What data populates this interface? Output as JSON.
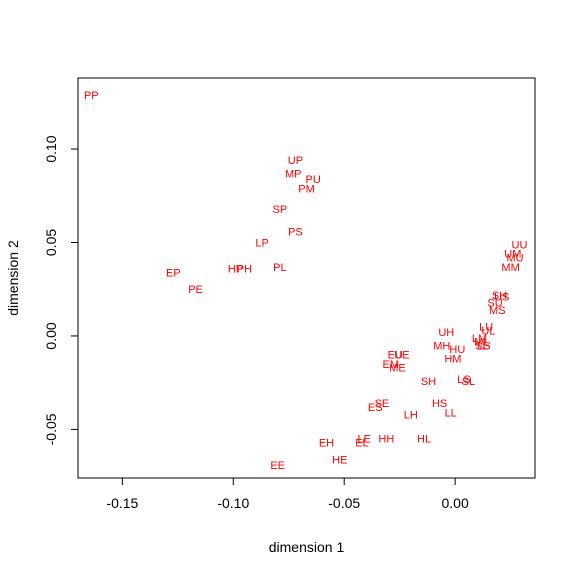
{
  "chart_data": {
    "type": "scatter",
    "title": "",
    "xlabel": "dimension 1",
    "ylabel": "dimension 2",
    "xlim": [
      -0.17,
      0.036
    ],
    "ylim": [
      -0.076,
      0.138
    ],
    "xticks": [
      -0.15,
      -0.1,
      -0.05,
      0.0
    ],
    "xtick_labels": [
      "-0.15",
      "-0.10",
      "-0.05",
      "0.00"
    ],
    "yticks": [
      -0.05,
      0.0,
      0.05,
      0.1
    ],
    "ytick_labels": [
      "-0.05",
      "0.00",
      "0.05",
      "0.10"
    ],
    "grid": false,
    "point_color": "#ff0000",
    "points": [
      {
        "label": "PP",
        "x": -0.164,
        "y": 0.129
      },
      {
        "label": "UP",
        "x": -0.072,
        "y": 0.094
      },
      {
        "label": "MP",
        "x": -0.073,
        "y": 0.087
      },
      {
        "label": "PU",
        "x": -0.064,
        "y": 0.084
      },
      {
        "label": "PM",
        "x": -0.067,
        "y": 0.079
      },
      {
        "label": "SP",
        "x": -0.079,
        "y": 0.068
      },
      {
        "label": "PS",
        "x": -0.072,
        "y": 0.056
      },
      {
        "label": "LP",
        "x": -0.087,
        "y": 0.05
      },
      {
        "label": "EP",
        "x": -0.127,
        "y": 0.034
      },
      {
        "label": "HP",
        "x": -0.099,
        "y": 0.036
      },
      {
        "label": "PH",
        "x": -0.095,
        "y": 0.036
      },
      {
        "label": "PL",
        "x": -0.079,
        "y": 0.037
      },
      {
        "label": "PE",
        "x": -0.117,
        "y": 0.025
      },
      {
        "label": "UU",
        "x": 0.029,
        "y": 0.049
      },
      {
        "label": "UM",
        "x": 0.026,
        "y": 0.044
      },
      {
        "label": "MU",
        "x": 0.027,
        "y": 0.042
      },
      {
        "label": "MM",
        "x": 0.025,
        "y": 0.037
      },
      {
        "label": "SH",
        "x": 0.02,
        "y": 0.022
      },
      {
        "label": "US",
        "x": 0.021,
        "y": 0.021
      },
      {
        "label": "SU",
        "x": 0.018,
        "y": 0.018
      },
      {
        "label": "MS",
        "x": 0.019,
        "y": 0.014
      },
      {
        "label": "LU",
        "x": 0.014,
        "y": 0.005
      },
      {
        "label": "UL",
        "x": 0.015,
        "y": 0.003
      },
      {
        "label": "LM",
        "x": 0.011,
        "y": -0.001
      },
      {
        "label": "ML",
        "x": 0.012,
        "y": -0.003
      },
      {
        "label": "LS",
        "x": 0.013,
        "y": -0.005
      },
      {
        "label": "SL",
        "x": 0.012,
        "y": -0.005
      },
      {
        "label": "UH",
        "x": -0.004,
        "y": 0.002
      },
      {
        "label": "MH",
        "x": -0.006,
        "y": -0.005
      },
      {
        "label": "HU",
        "x": 0.001,
        "y": -0.007
      },
      {
        "label": "HM",
        "x": -0.001,
        "y": -0.012
      },
      {
        "label": "EU",
        "x": -0.027,
        "y": -0.01
      },
      {
        "label": "UE",
        "x": -0.024,
        "y": -0.01
      },
      {
        "label": "EM",
        "x": -0.029,
        "y": -0.015
      },
      {
        "label": "ME",
        "x": -0.026,
        "y": -0.017
      },
      {
        "label": "SH",
        "x": -0.012,
        "y": -0.024
      },
      {
        "label": "LS",
        "x": 0.004,
        "y": -0.023
      },
      {
        "label": "SL",
        "x": 0.006,
        "y": -0.024
      },
      {
        "label": "SE",
        "x": -0.033,
        "y": -0.036
      },
      {
        "label": "ES",
        "x": -0.036,
        "y": -0.038
      },
      {
        "label": "HS",
        "x": -0.007,
        "y": -0.036
      },
      {
        "label": "LH",
        "x": -0.02,
        "y": -0.042
      },
      {
        "label": "LL",
        "x": -0.002,
        "y": -0.041
      },
      {
        "label": "LE",
        "x": -0.041,
        "y": -0.055
      },
      {
        "label": "EL",
        "x": -0.042,
        "y": -0.057
      },
      {
        "label": "HH",
        "x": -0.031,
        "y": -0.055
      },
      {
        "label": "HL",
        "x": -0.014,
        "y": -0.055
      },
      {
        "label": "EH",
        "x": -0.058,
        "y": -0.057
      },
      {
        "label": "HE",
        "x": -0.052,
        "y": -0.066
      },
      {
        "label": "EE",
        "x": -0.08,
        "y": -0.069
      }
    ]
  }
}
